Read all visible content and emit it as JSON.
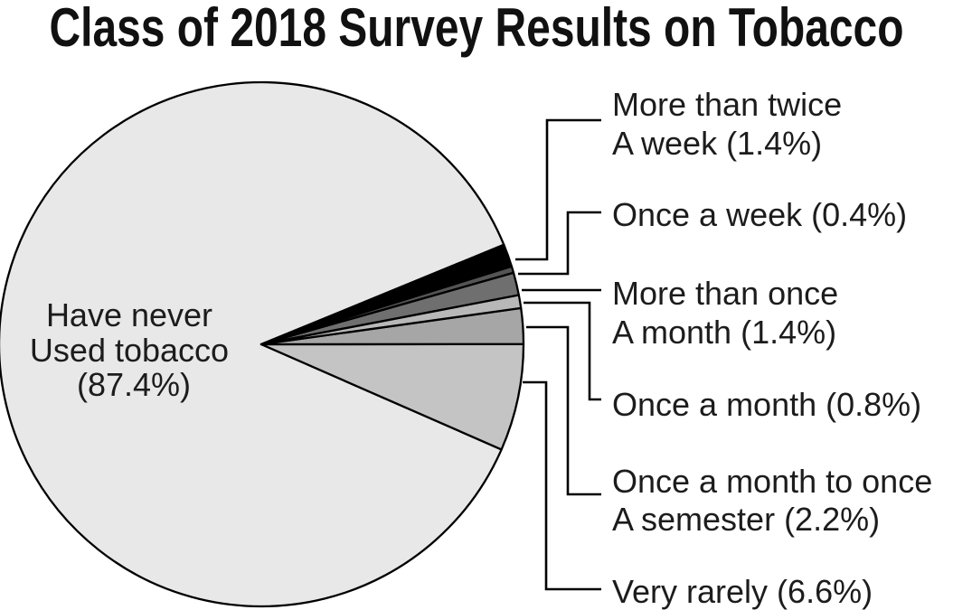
{
  "title": "Class of 2018 Survey Results on Tobacco",
  "chart_data": {
    "type": "pie",
    "title": "Class of 2018 Survey Results on Tobacco",
    "unit": "percent",
    "start_angle_deg": 22.32,
    "direction": "clockwise",
    "slices": [
      {
        "label": "More than twice a week",
        "value": 1.4,
        "color": "#000000"
      },
      {
        "label": "Once a week",
        "value": 0.4,
        "color": "#545454"
      },
      {
        "label": "More than once a month",
        "value": 1.4,
        "color": "#6f6f6f"
      },
      {
        "label": "Once a month",
        "value": 0.8,
        "color": "#b8b8b8"
      },
      {
        "label": "Once a month to once a semester",
        "value": 2.2,
        "color": "#a6a6a6"
      },
      {
        "label": "Very rarely",
        "value": 6.6,
        "color": "#c4c4c4"
      },
      {
        "label": "Have never used tobacco",
        "value": 87.4,
        "color": "#e8e8e8"
      }
    ]
  },
  "center_label": {
    "line1": "Have never",
    "line2": "Used tobacco",
    "line3": "(87.4%)"
  },
  "callouts": [
    {
      "line1": "More than twice",
      "line2": "A week (1.4%)"
    },
    {
      "line1": "Once a week (0.4%)"
    },
    {
      "line1": "More than once",
      "line2": "A month (1.4%)"
    },
    {
      "line1": "Once a month (0.8%)"
    },
    {
      "line1": "Once a month to once",
      "line2": "A semester (2.2%)"
    },
    {
      "line1": "Very rarely (6.6%)"
    }
  ]
}
